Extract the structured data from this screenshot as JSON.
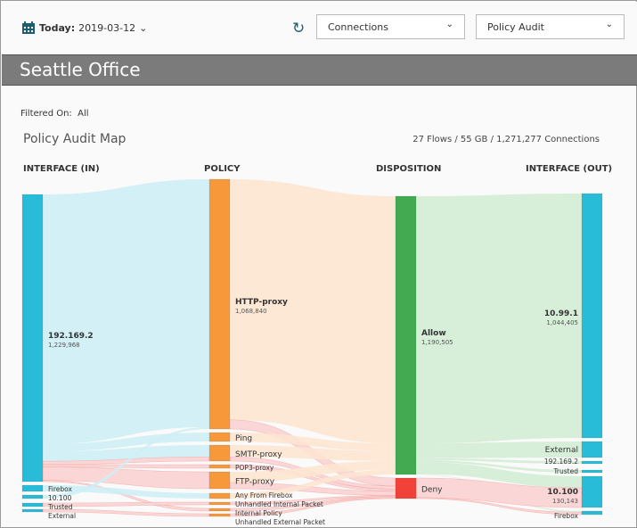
{
  "toolbar": {
    "date_label": "Today:",
    "date_value": "2019-03-12",
    "date_icon": "calendar-icon",
    "refresh_icon": "refresh-icon",
    "select1": "Connections",
    "select2": "Policy Audit"
  },
  "banner": {
    "title": "Seattle Office"
  },
  "filter": {
    "label": "Filtered On:",
    "value": "All"
  },
  "map": {
    "title": "Policy Audit Map",
    "stats": "27 Flows / 55 GB / 1,271,277 Connections"
  },
  "columns": [
    "INTERFACE (IN)",
    "POLICY",
    "DISPOSITION",
    "INTERFACE (OUT)"
  ],
  "colors": {
    "interface": "#29bcd8",
    "policy": "#f7993a",
    "allow": "#43aa52",
    "deny": "#f1423a"
  },
  "chart_data": {
    "type": "sankey",
    "nodes": [
      {
        "id": "in-192",
        "col": 0,
        "label": "192.169.2",
        "value": "1,229,968"
      },
      {
        "id": "in-firebox",
        "col": 0,
        "label": "Firebox"
      },
      {
        "id": "in-10100",
        "col": 0,
        "label": "10.100"
      },
      {
        "id": "in-trusted",
        "col": 0,
        "label": "Trusted"
      },
      {
        "id": "in-external",
        "col": 0,
        "label": "External"
      },
      {
        "id": "p-http",
        "col": 1,
        "label": "HTTP-proxy",
        "value": "1,068,840"
      },
      {
        "id": "p-ping",
        "col": 1,
        "label": "Ping"
      },
      {
        "id": "p-smtp",
        "col": 1,
        "label": "SMTP-proxy"
      },
      {
        "id": "p-pop3",
        "col": 1,
        "label": "POP3-proxy"
      },
      {
        "id": "p-ftp",
        "col": 1,
        "label": "FTP-proxy"
      },
      {
        "id": "p-any",
        "col": 1,
        "label": "Any From Firebox"
      },
      {
        "id": "p-uip",
        "col": 1,
        "label": "Unhandled Internal Packet"
      },
      {
        "id": "p-ip",
        "col": 1,
        "label": "Internal Policy"
      },
      {
        "id": "p-uep",
        "col": 1,
        "label": "Unhandled External Packet"
      },
      {
        "id": "d-allow",
        "col": 2,
        "label": "Allow",
        "value": "1,190,505"
      },
      {
        "id": "d-deny",
        "col": 2,
        "label": "Deny"
      },
      {
        "id": "o-1099",
        "col": 3,
        "label": "10.99.1",
        "value": "1,044,405"
      },
      {
        "id": "o-external",
        "col": 3,
        "label": "External"
      },
      {
        "id": "o-192",
        "col": 3,
        "label": "192.169.2"
      },
      {
        "id": "o-trusted",
        "col": 3,
        "label": "Trusted"
      },
      {
        "id": "o-10100",
        "col": 3,
        "label": "10.100",
        "value": "130,143"
      },
      {
        "id": "o-firebox",
        "col": 3,
        "label": "Firebox"
      }
    ],
    "links": [
      [
        "in-192",
        "p-http",
        1030000,
        false
      ],
      [
        "in-192",
        "p-ping",
        30000,
        false
      ],
      [
        "in-192",
        "p-smtp",
        40000,
        false
      ],
      [
        "in-192",
        "p-smtp",
        14000,
        true
      ],
      [
        "in-192",
        "p-pop3",
        10000,
        true
      ],
      [
        "in-192",
        "p-ftp",
        55000,
        true
      ],
      [
        "in-192",
        "p-ip",
        5000,
        true
      ],
      [
        "in-firebox",
        "p-any",
        20000,
        false
      ],
      [
        "in-10100",
        "p-http",
        8000,
        false
      ],
      [
        "in-trusted",
        "p-uip",
        5000,
        true
      ],
      [
        "in-external",
        "p-uep",
        5000,
        true
      ],
      [
        "p-http",
        "d-allow",
        1000000,
        false
      ],
      [
        "p-http",
        "d-deny",
        38000,
        true
      ],
      [
        "p-ping",
        "d-allow",
        30000,
        false
      ],
      [
        "p-smtp",
        "d-allow",
        40000,
        false
      ],
      [
        "p-smtp",
        "d-deny",
        14000,
        true
      ],
      [
        "p-pop3",
        "d-deny",
        10000,
        true
      ],
      [
        "p-ftp",
        "d-allow",
        35000,
        false
      ],
      [
        "p-ftp",
        "d-deny",
        20000,
        true
      ],
      [
        "p-any",
        "d-allow",
        20000,
        false
      ],
      [
        "p-uip",
        "d-deny",
        5000,
        true
      ],
      [
        "p-ip",
        "d-deny",
        5000,
        true
      ],
      [
        "p-uep",
        "d-deny",
        5000,
        true
      ],
      [
        "d-allow",
        "o-1099",
        1000000,
        false
      ],
      [
        "d-allow",
        "o-external",
        60000,
        false
      ],
      [
        "d-allow",
        "o-192",
        8000,
        false
      ],
      [
        "d-allow",
        "o-trusted",
        8000,
        false
      ],
      [
        "d-allow",
        "o-10100",
        48000,
        false
      ],
      [
        "d-allow",
        "o-firebox",
        2000,
        false
      ],
      [
        "d-deny",
        "o-10100",
        82000,
        true
      ],
      [
        "d-deny",
        "o-firebox",
        4000,
        true
      ]
    ]
  }
}
